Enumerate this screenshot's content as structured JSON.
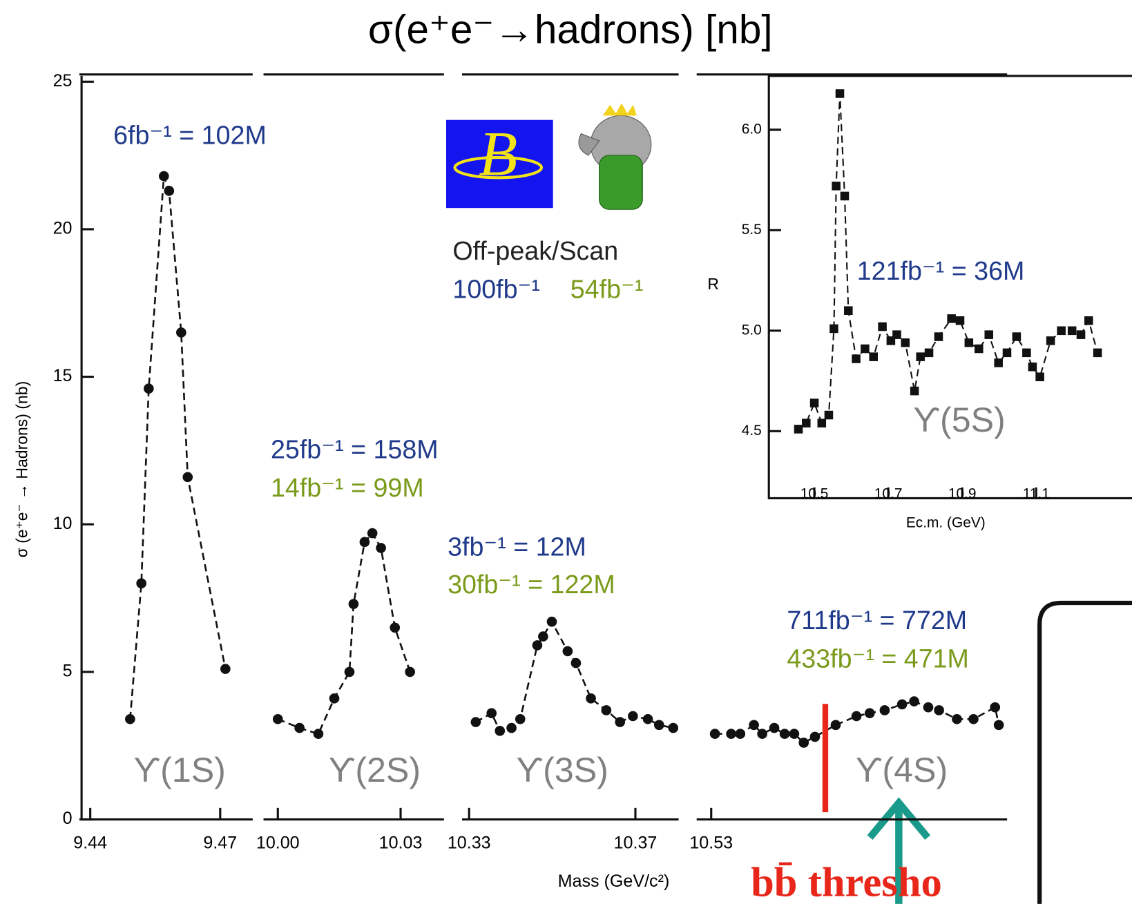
{
  "chart_data": [
    {
      "type": "broken-scatter",
      "title": "σ(e⁺e⁻→hadrons) [nb]",
      "xlabel": "Mass (GeV/c²)",
      "ylabel": "σ (e⁺e⁻ → Hadrons) (nb)",
      "ylim": [
        0,
        25
      ],
      "yticks": [
        0,
        5,
        10,
        15,
        20,
        25
      ],
      "color": "#111111",
      "segments": [
        {
          "xlim": [
            9.4375,
            9.4775
          ],
          "xticks": [
            9.44,
            9.47
          ],
          "x": [
            9.4492,
            9.4518,
            9.4535,
            9.457,
            9.4582,
            9.461,
            9.4625,
            9.4712
          ],
          "values": [
            3.4,
            8.0,
            14.6,
            21.8,
            21.3,
            16.5,
            11.6,
            5.1
          ]
        },
        {
          "xlim": [
            9.9965,
            10.0406
          ],
          "xticks": [
            {
              "value": 10,
              "label": "10.00"
            },
            10.03
          ],
          "x": [
            10.0,
            10.0053,
            10.0099,
            10.0138,
            10.0175,
            10.0185,
            10.0212,
            10.0231,
            10.0252,
            10.0286,
            10.0323
          ],
          "values": [
            3.4,
            3.1,
            2.9,
            4.1,
            5.0,
            7.3,
            9.4,
            9.7,
            9.2,
            6.5,
            5.0
          ]
        },
        {
          "xlim": [
            10.3283,
            10.3804
          ],
          "xticks": [
            10.33,
            10.37
          ],
          "x": [
            10.3316,
            10.3354,
            10.3374,
            10.3402,
            10.3423,
            10.3464,
            10.3478,
            10.3499,
            10.3537,
            10.3557,
            10.3593,
            10.363,
            10.3663,
            10.3694,
            10.373,
            10.3757,
            10.3791
          ],
          "values": [
            3.3,
            3.6,
            3.0,
            3.1,
            3.4,
            5.9,
            6.2,
            6.7,
            5.7,
            5.3,
            4.1,
            3.7,
            3.3,
            3.5,
            3.4,
            3.2,
            3.1
          ]
        },
        {
          "xlim": [
            10.5265,
            10.6013
          ],
          "xticks": [
            10.53
          ],
          "x": [
            10.5309,
            10.5348,
            10.537,
            10.5403,
            10.5423,
            10.5452,
            10.5477,
            10.55,
            10.5523,
            10.555,
            10.56,
            10.565,
            10.5682,
            10.5718,
            10.576,
            10.5789,
            10.5823,
            10.5849,
            10.5892,
            10.5932,
            10.5984,
            10.5993
          ],
          "values": [
            2.9,
            2.9,
            2.9,
            3.2,
            2.9,
            3.1,
            2.9,
            2.9,
            2.6,
            2.8,
            3.2,
            3.5,
            3.6,
            3.7,
            3.9,
            4.0,
            3.8,
            3.7,
            3.4,
            3.4,
            3.8,
            3.2
          ]
        }
      ],
      "threshold": {
        "x": 10.5575,
        "color": "#e8261a",
        "label": "bb̄ thresho"
      },
      "annotations": [
        {
          "text": "6fb⁻¹ = 102M",
          "color": "#1f3a8a"
        },
        {
          "text": "25fb⁻¹ = 158M",
          "color": "#1f3a8a"
        },
        {
          "text": "14fb⁻¹ = 99M",
          "color": "#7a9a1a"
        },
        {
          "text": "3fb⁻¹ = 12M",
          "color": "#1f3a8a"
        },
        {
          "text": "30fb⁻¹ = 122M",
          "color": "#7a9a1a"
        },
        {
          "text": "711fb⁻¹ = 772M",
          "color": "#1f3a8a"
        },
        {
          "text": "433fb⁻¹ = 471M",
          "color": "#7a9a1a"
        },
        {
          "text": "ϒ(1S)",
          "color": "#808080"
        },
        {
          "text": "ϒ(2S)",
          "color": "#808080"
        },
        {
          "text": "ϒ(3S)",
          "color": "#808080"
        },
        {
          "text": "ϒ(4S)",
          "color": "#808080"
        },
        {
          "text": "Off-peak/Scan",
          "color": "#222222"
        },
        {
          "text": "100fb⁻¹",
          "color": "#1f3a8a"
        },
        {
          "text": "54fb⁻¹",
          "color": "#7a9a1a"
        }
      ]
    },
    {
      "type": "scatter",
      "xlabel": "Ec.m. (GeV)",
      "ylabel": "R",
      "color": "#111111",
      "xlim": [
        10.377,
        11.324
      ],
      "xticks": [
        10.5,
        10.7,
        10.9,
        11.1
      ],
      "ylim": [
        4.31,
        6.25
      ],
      "yticks": [
        4.5,
        {
          "value": 5,
          "label": "5.0"
        },
        5.5,
        {
          "value": 6,
          "label": "6.0"
        }
      ],
      "x": [
        10.457,
        10.478,
        10.5,
        10.52,
        10.539,
        10.553,
        10.559,
        10.569,
        10.582,
        10.592,
        10.613,
        10.637,
        10.66,
        10.684,
        10.707,
        10.723,
        10.746,
        10.771,
        10.787,
        10.81,
        10.836,
        10.871,
        10.894,
        10.918,
        10.945,
        10.972,
        10.998,
        11.021,
        11.047,
        11.074,
        11.09,
        11.11,
        11.139,
        11.168,
        11.197,
        11.221,
        11.242,
        11.266
      ],
      "values": [
        4.51,
        4.54,
        4.64,
        4.54,
        4.58,
        5.01,
        5.72,
        6.18,
        5.67,
        5.1,
        4.86,
        4.91,
        4.87,
        5.02,
        4.95,
        4.98,
        4.94,
        4.7,
        4.87,
        4.89,
        4.97,
        5.06,
        5.05,
        4.94,
        4.91,
        4.98,
        4.84,
        4.89,
        4.97,
        4.89,
        4.82,
        4.77,
        4.95,
        5.0,
        5.0,
        4.98,
        5.05,
        4.89
      ],
      "annotations": [
        {
          "text": "121fb⁻¹ = 36M",
          "color": "#1f3a8a"
        },
        {
          "text": "ϒ(5S)",
          "color": "#808080"
        }
      ]
    }
  ]
}
